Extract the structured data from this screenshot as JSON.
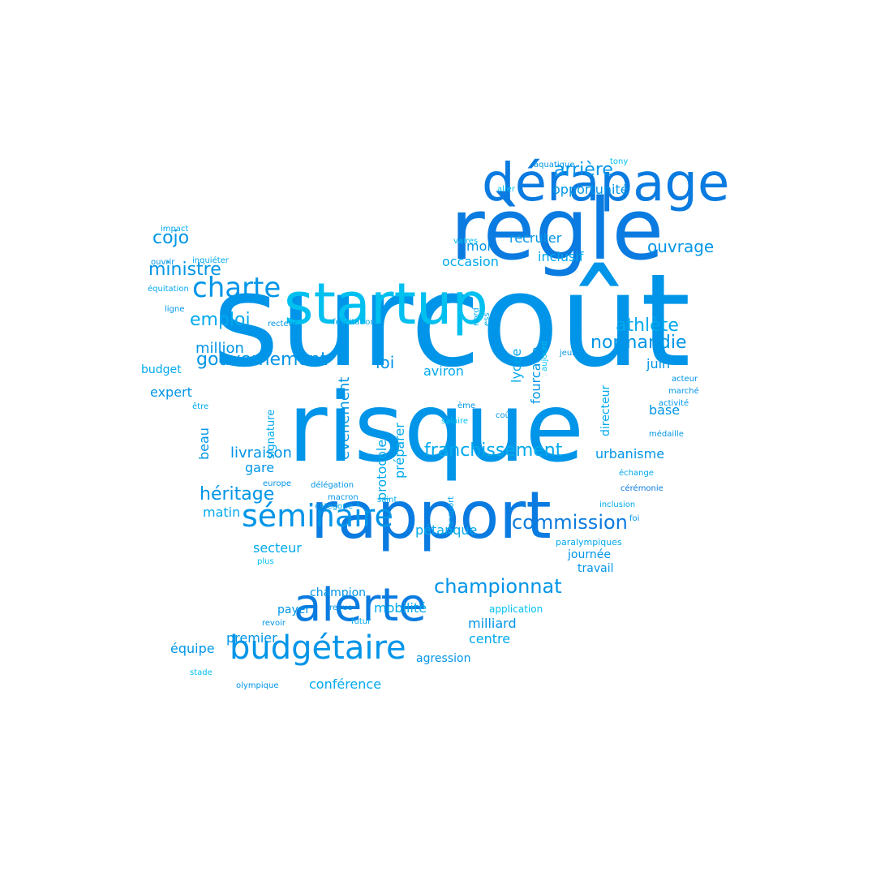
{
  "words": [
    {
      "text": "surcoût",
      "color": "c1"
    },
    {
      "text": "risque",
      "color": "c1"
    },
    {
      "text": "règle",
      "color": "c0"
    },
    {
      "text": "rapport",
      "color": "c0"
    },
    {
      "text": "startup",
      "color": "c3"
    },
    {
      "text": "dérapage",
      "color": "c0"
    },
    {
      "text": "alerte",
      "color": "c0"
    },
    {
      "text": "budgétaire",
      "color": "c1"
    },
    {
      "text": "séminaire",
      "color": "c1"
    },
    {
      "text": "charte",
      "color": "c1"
    },
    {
      "text": "championnat",
      "color": "c1"
    },
    {
      "text": "commission",
      "color": "c0"
    },
    {
      "text": "franchissement",
      "color": "c2"
    },
    {
      "text": "gouvernement",
      "color": "c1"
    },
    {
      "text": "normandie",
      "color": "c1"
    },
    {
      "text": "athlète",
      "color": "c2"
    },
    {
      "text": "héritage",
      "color": "c1"
    },
    {
      "text": "ministre",
      "color": "c1"
    },
    {
      "text": "ouvrage",
      "color": "c1"
    },
    {
      "text": "arrière",
      "color": "c1"
    },
    {
      "text": "cojo",
      "color": "c1"
    },
    {
      "text": "emploi",
      "color": "c2"
    },
    {
      "text": "loi",
      "color": "c1"
    },
    {
      "text": "opportunité",
      "color": "c1"
    },
    {
      "text": "recruter",
      "color": "c1"
    },
    {
      "text": "inclusif",
      "color": "c2"
    },
    {
      "text": "occasion",
      "color": "c2"
    },
    {
      "text": "moi",
      "color": "c1"
    },
    {
      "text": "million",
      "color": "c1"
    },
    {
      "text": "aviron",
      "color": "c2"
    },
    {
      "text": "juin",
      "color": "c1"
    },
    {
      "text": "base",
      "color": "c1"
    },
    {
      "text": "urbanisme",
      "color": "c1"
    },
    {
      "text": "expert",
      "color": "c1"
    },
    {
      "text": "livraison",
      "color": "c1"
    },
    {
      "text": "gare",
      "color": "c1"
    },
    {
      "text": "matin",
      "color": "c2"
    },
    {
      "text": "pétanque",
      "color": "c2"
    },
    {
      "text": "secteur",
      "color": "c2"
    },
    {
      "text": "journée",
      "color": "c1"
    },
    {
      "text": "travail",
      "color": "c1"
    },
    {
      "text": "champion",
      "color": "c1"
    },
    {
      "text": "mobilité",
      "color": "c2"
    },
    {
      "text": "payer",
      "color": "c1"
    },
    {
      "text": "milliard",
      "color": "c1"
    },
    {
      "text": "centre",
      "color": "c2"
    },
    {
      "text": "premier",
      "color": "c1"
    },
    {
      "text": "équipe",
      "color": "c1"
    },
    {
      "text": "agression",
      "color": "c1"
    },
    {
      "text": "conférence",
      "color": "c2"
    },
    {
      "text": "budget",
      "color": "c2"
    },
    {
      "text": "application",
      "color": "c3"
    },
    {
      "text": "paralympiques",
      "color": "c2"
    },
    {
      "text": "beau",
      "color": "c1"
    },
    {
      "text": "évènement",
      "color": "c1"
    },
    {
      "text": "protocole",
      "color": "c2"
    },
    {
      "text": "préparer",
      "color": "c2"
    },
    {
      "text": "lycée",
      "color": "c2"
    },
    {
      "text": "fourcade",
      "color": "c1"
    },
    {
      "text": "directeur",
      "color": "c2"
    },
    {
      "text": "signature",
      "color": "c2"
    },
    {
      "text": "transport",
      "color": "c2"
    },
    {
      "text": "aujourd",
      "color": "c3"
    },
    {
      "text": "nord",
      "color": "c2"
    },
    {
      "text": "ess",
      "color": "c2"
    },
    {
      "text": "aquatique",
      "color": "c1"
    },
    {
      "text": "tony",
      "color": "c3"
    },
    {
      "text": "aller",
      "color": "c3"
    },
    {
      "text": "vaires",
      "color": "c3"
    },
    {
      "text": "impact",
      "color": "c2"
    },
    {
      "text": "ouvrir",
      "color": "c1"
    },
    {
      "text": "inquiéter",
      "color": "c2"
    },
    {
      "text": "équitation",
      "color": "c2"
    },
    {
      "text": "ligne",
      "color": "c1"
    },
    {
      "text": "recteur",
      "color": "c1"
    },
    {
      "text": "félicitation",
      "color": "c2"
    },
    {
      "text": "jeune",
      "color": "c1"
    },
    {
      "text": "acteur",
      "color": "c1"
    },
    {
      "text": "marché",
      "color": "c1"
    },
    {
      "text": "activité",
      "color": "c1"
    },
    {
      "text": "être",
      "color": "c2"
    },
    {
      "text": "ème",
      "color": "c1"
    },
    {
      "text": "coût",
      "color": "c1"
    },
    {
      "text": "salaire",
      "color": "c3"
    },
    {
      "text": "médaille",
      "color": "c1"
    },
    {
      "text": "europe",
      "color": "c1"
    },
    {
      "text": "délégation",
      "color": "c1"
    },
    {
      "text": "macron",
      "color": "c1"
    },
    {
      "text": "catégorie",
      "color": "c2"
    },
    {
      "text": "saint",
      "color": "c2"
    },
    {
      "text": "échange",
      "color": "c2"
    },
    {
      "text": "cérémonie",
      "color": "c0"
    },
    {
      "text": "inclusion",
      "color": "c2"
    },
    {
      "text": "foi",
      "color": "c1"
    },
    {
      "text": "plus",
      "color": "c3"
    },
    {
      "text": "revue",
      "color": "c1"
    },
    {
      "text": "revoir",
      "color": "c1"
    },
    {
      "text": "futur",
      "color": "c2"
    },
    {
      "text": "stade",
      "color": "c3"
    },
    {
      "text": "olympique",
      "color": "c1"
    }
  ]
}
